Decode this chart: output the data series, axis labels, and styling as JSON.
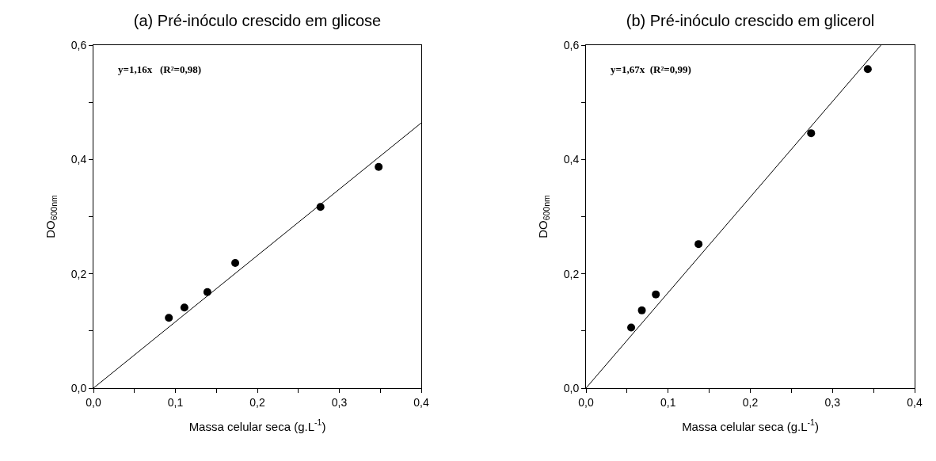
{
  "chart_data": [
    {
      "type": "scatter",
      "title": "(a) Pré-inóculo crescido em glicose",
      "xlabel": "Massa celular seca (g.L$^{-1}$)",
      "ylabel": "DO$_{600nm}$",
      "annotations": [
        "y=1,16x   (R²=0,98)"
      ],
      "grid": false,
      "xlim": [
        0,
        0.4
      ],
      "ylim": [
        0,
        0.6
      ],
      "xticks": [
        {
          "value": 0,
          "label": "0,0"
        },
        {
          "value": 0.05,
          "label": null
        },
        {
          "value": 0.1,
          "label": "0,1"
        },
        {
          "value": 0.15,
          "label": null
        },
        {
          "value": 0.2,
          "label": "0,2"
        },
        {
          "value": 0.25,
          "label": null
        },
        {
          "value": 0.3,
          "label": "0,3"
        },
        {
          "value": 0.35,
          "label": null
        },
        {
          "value": 0.4,
          "label": "0,4"
        }
      ],
      "yticks": [
        {
          "value": 0,
          "label": "0,0"
        },
        {
          "value": 0.1,
          "label": null
        },
        {
          "value": 0.2,
          "label": "0,2"
        },
        {
          "value": 0.3,
          "label": null
        },
        {
          "value": 0.4,
          "label": "0,4"
        },
        {
          "value": 0.5,
          "label": null
        },
        {
          "value": 0.6,
          "label": "0,6"
        }
      ],
      "series": [
        {
          "marker": "circle",
          "color": "#000000",
          "x": [
            0.092,
            0.111,
            0.139,
            0.173,
            0.277,
            0.348
          ],
          "values": [
            0.123,
            0.141,
            0.168,
            0.219,
            0.317,
            0.387
          ]
        },
        {
          "type": "line",
          "marker": "none",
          "color": "#000000",
          "x": [
            0,
            0.4
          ],
          "values": [
            0,
            0.464
          ]
        }
      ]
    },
    {
      "type": "scatter",
      "title": "(b) Pré-inóculo crescido em glicerol",
      "xlabel": "Massa celular seca (g.L$^{-1}$)",
      "ylabel": "DO$_{600nm}$",
      "annotations": [
        "y=1,67x  (R²=0,99)"
      ],
      "grid": false,
      "xlim": [
        0,
        0.4
      ],
      "ylim": [
        0,
        0.6
      ],
      "xticks": [
        {
          "value": 0,
          "label": "0,0"
        },
        {
          "value": 0.05,
          "label": null
        },
        {
          "value": 0.1,
          "label": "0,1"
        },
        {
          "value": 0.15,
          "label": null
        },
        {
          "value": 0.2,
          "label": "0,2"
        },
        {
          "value": 0.25,
          "label": null
        },
        {
          "value": 0.3,
          "label": "0,3"
        },
        {
          "value": 0.35,
          "label": null
        },
        {
          "value": 0.4,
          "label": "0,4"
        }
      ],
      "yticks": [
        {
          "value": 0,
          "label": "0,0"
        },
        {
          "value": 0.1,
          "label": null
        },
        {
          "value": 0.2,
          "label": "0,2"
        },
        {
          "value": 0.3,
          "label": null
        },
        {
          "value": 0.4,
          "label": "0,4"
        },
        {
          "value": 0.5,
          "label": null
        },
        {
          "value": 0.6,
          "label": "0,6"
        }
      ],
      "series": [
        {
          "marker": "circle",
          "color": "#000000",
          "x": [
            0.055,
            0.068,
            0.085,
            0.137,
            0.274,
            0.343
          ],
          "values": [
            0.106,
            0.136,
            0.164,
            0.252,
            0.446,
            0.558
          ]
        },
        {
          "type": "line",
          "marker": "none",
          "color": "#000000",
          "x": [
            0,
            0.359
          ],
          "values": [
            0,
            0.6
          ]
        }
      ]
    }
  ]
}
